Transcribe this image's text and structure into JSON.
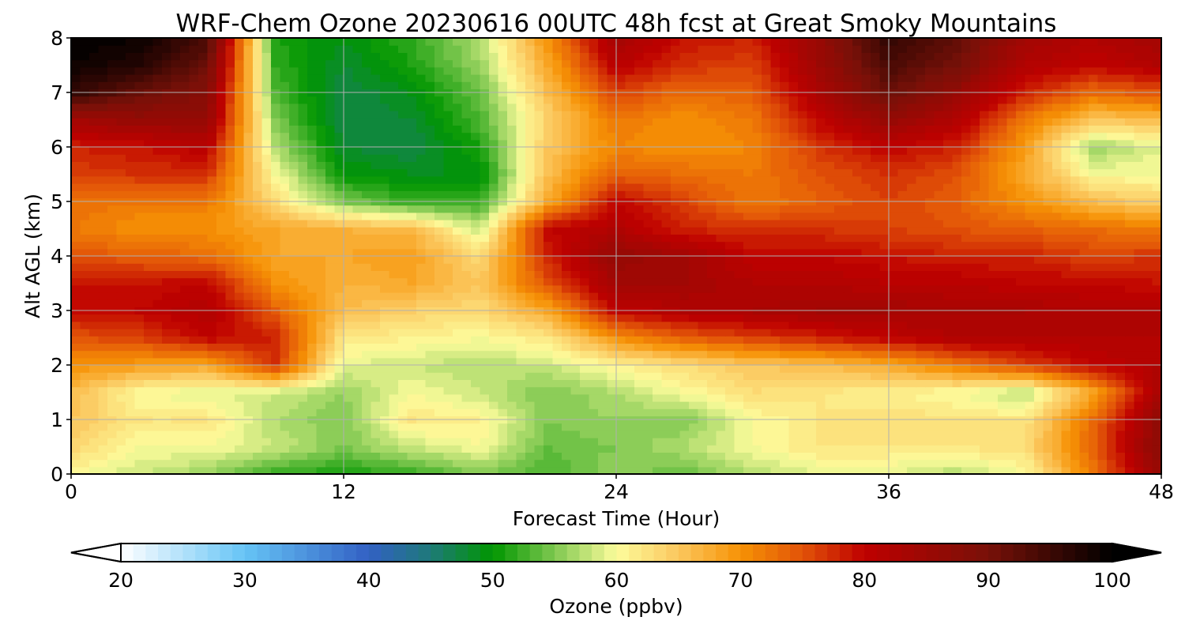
{
  "chart_data": {
    "type": "heatmap",
    "title": "WRF-Chem Ozone  20230616 00UTC 48h fcst at Great Smoky Mountains",
    "xlabel": "Forecast Time (Hour)",
    "ylabel": "Alt AGL (km)",
    "xlim": [
      0,
      48
    ],
    "ylim": [
      0,
      8
    ],
    "xticks": [
      0,
      12,
      24,
      36,
      48
    ],
    "yticks": [
      0,
      1,
      2,
      3,
      4,
      5,
      6,
      7,
      8
    ],
    "grid": true,
    "x_hours": [
      0,
      3,
      6,
      9,
      12,
      15,
      18,
      21,
      24,
      27,
      30,
      33,
      36,
      39,
      42,
      45,
      48
    ],
    "y_km": [
      0,
      0.5,
      1,
      1.5,
      2,
      2.5,
      3,
      3.5,
      4,
      4.5,
      5,
      5.5,
      6,
      6.5,
      7,
      7.5,
      8
    ],
    "z_rows_by_altitude": [
      [
        60,
        58,
        56,
        52,
        51,
        52,
        55,
        53,
        56,
        54,
        57,
        59,
        59,
        57,
        60,
        72,
        86
      ],
      [
        64,
        60,
        60,
        58,
        55,
        58,
        60,
        54,
        55,
        57,
        60,
        62,
        62,
        62,
        63,
        74,
        88
      ],
      [
        65,
        62,
        62,
        57,
        55,
        62,
        61,
        55,
        56,
        55,
        60,
        62,
        63,
        62,
        62,
        73,
        87
      ],
      [
        66,
        60,
        59,
        58,
        56,
        60,
        58,
        55,
        57,
        60,
        63,
        62,
        61,
        60,
        57,
        68,
        84
      ],
      [
        70,
        69,
        68,
        77,
        59,
        58,
        57,
        58,
        61,
        63,
        65,
        66,
        68,
        72,
        76,
        80,
        82
      ],
      [
        75,
        76,
        80,
        78,
        62,
        61,
        60,
        62,
        70,
        74,
        76,
        78,
        80,
        82,
        82,
        82,
        82
      ],
      [
        79,
        80,
        82,
        74,
        66,
        64,
        63,
        68,
        80,
        82,
        83,
        84,
        84,
        83,
        83,
        82,
        82
      ],
      [
        79,
        79,
        80,
        70,
        67,
        68,
        65,
        75,
        84,
        84,
        82,
        82,
        81,
        81,
        80,
        80,
        79
      ],
      [
        75,
        74,
        73,
        68,
        68,
        69,
        63,
        78,
        86,
        84,
        80,
        80,
        79,
        78,
        78,
        76,
        77
      ],
      [
        72,
        70,
        70,
        68,
        67,
        66,
        58,
        80,
        82,
        78,
        77,
        77,
        76,
        75,
        74,
        73,
        72
      ],
      [
        73,
        72,
        72,
        63,
        55,
        52,
        52,
        68,
        80,
        76,
        72,
        74,
        76,
        74,
        70,
        66,
        64
      ],
      [
        76,
        77,
        77,
        60,
        50,
        49,
        49,
        66,
        74,
        73,
        72,
        75,
        77,
        75,
        68,
        60,
        60
      ],
      [
        78,
        79,
        81,
        57,
        48,
        47,
        51,
        65,
        71,
        70,
        71,
        77,
        80,
        78,
        69,
        56,
        59
      ],
      [
        84,
        86,
        86,
        55,
        47,
        48,
        53,
        64,
        72,
        70,
        72,
        80,
        86,
        82,
        72,
        65,
        66
      ],
      [
        96,
        91,
        88,
        53,
        47,
        49,
        54,
        66,
        76,
        73,
        74,
        83,
        91,
        86,
        78,
        73,
        75
      ],
      [
        99,
        97,
        91,
        52,
        48,
        51,
        56,
        68,
        81,
        77,
        76,
        85,
        94,
        90,
        82,
        80,
        82
      ],
      [
        100,
        99,
        94,
        51,
        49,
        52,
        57,
        70,
        84,
        79,
        78,
        86,
        96,
        92,
        84,
        82,
        84
      ]
    ],
    "colorbar": {
      "label": "Ozone  (ppbv)",
      "min": 20,
      "max": 100,
      "step": 1,
      "ticks": [
        20,
        30,
        40,
        50,
        60,
        70,
        80,
        90,
        100
      ],
      "extend": "both",
      "stops": [
        {
          "v": 20,
          "c": "#ffffff"
        },
        {
          "v": 30,
          "c": "#66c4f5"
        },
        {
          "v": 40,
          "c": "#3260c4"
        },
        {
          "v": 45,
          "c": "#1e7a78"
        },
        {
          "v": 50,
          "c": "#009600"
        },
        {
          "v": 55,
          "c": "#7fc850"
        },
        {
          "v": 60,
          "c": "#fdfc9c"
        },
        {
          "v": 65,
          "c": "#fbc75e"
        },
        {
          "v": 70,
          "c": "#f69205"
        },
        {
          "v": 75,
          "c": "#e25308"
        },
        {
          "v": 80,
          "c": "#be0000"
        },
        {
          "v": 90,
          "c": "#781108"
        },
        {
          "v": 100,
          "c": "#000000"
        }
      ],
      "extend_min_color": "#ffffff",
      "extend_max_color": "#000000"
    }
  }
}
